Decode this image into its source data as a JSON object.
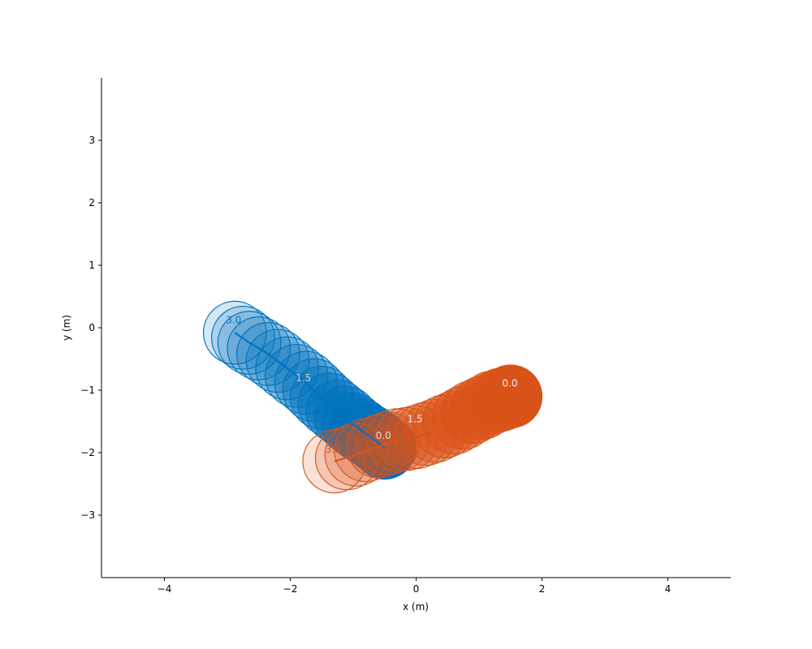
{
  "chart_data": {
    "type": "scatter",
    "title": "",
    "xlabel": "x (m)",
    "ylabel": "y (m)",
    "xlim": [
      -5,
      5
    ],
    "ylim": [
      -4,
      4
    ],
    "xticks": [
      -4,
      -2,
      0,
      2,
      4
    ],
    "yticks": [
      -3,
      -2,
      -1,
      0,
      1,
      2,
      3
    ],
    "grid": false,
    "agent_radius": 0.5,
    "series": [
      {
        "color": "#0072BD",
        "path": {
          "x": [
            -0.5,
            -0.75,
            -1.0,
            -1.25,
            -1.5,
            -1.75,
            -2.05,
            -2.35,
            -2.65,
            -2.88
          ],
          "y": [
            -1.92,
            -1.73,
            -1.55,
            -1.34,
            -1.12,
            -0.88,
            -0.65,
            -0.42,
            -0.24,
            -0.08
          ]
        },
        "circles": {
          "x": [
            -0.5,
            -0.62,
            -0.75,
            -0.88,
            -1.0,
            -1.12,
            -1.25,
            -1.38,
            -1.5,
            -1.62,
            -1.75,
            -1.9,
            -2.05,
            -2.2,
            -2.35,
            -2.5,
            -2.65,
            -2.75,
            -2.88
          ],
          "y": [
            -1.92,
            -1.82,
            -1.73,
            -1.64,
            -1.55,
            -1.44,
            -1.34,
            -1.23,
            -1.12,
            -1.0,
            -0.88,
            -0.77,
            -0.65,
            -0.53,
            -0.42,
            -0.33,
            -0.24,
            -0.16,
            -0.08
          ],
          "fill_opacity": [
            1.0,
            0.87,
            0.77,
            0.69,
            0.62,
            0.56,
            0.5,
            0.45,
            0.4,
            0.36,
            0.32,
            0.3,
            0.28,
            0.26,
            0.24,
            0.22,
            0.2,
            0.19,
            0.17
          ]
        },
        "time_labels": [
          {
            "x": -0.52,
            "y": -1.78,
            "text": "0.0",
            "color": "#dddddd"
          },
          {
            "x": -1.79,
            "y": -0.86,
            "text": "1.5",
            "color": "#cccccc"
          },
          {
            "x": -2.9,
            "y": 0.07,
            "text": "3.0",
            "color": "#0072BD"
          }
        ]
      },
      {
        "color": "#D95319",
        "path": {
          "x": [
            1.5,
            1.2,
            0.9,
            0.6,
            0.3,
            0.0,
            -0.3,
            -0.6,
            -0.95,
            -1.3
          ],
          "y": [
            -1.1,
            -1.2,
            -1.35,
            -1.52,
            -1.65,
            -1.75,
            -1.8,
            -1.9,
            -2.03,
            -2.14
          ]
        },
        "circles": {
          "x": [
            1.5,
            1.35,
            1.2,
            1.05,
            0.9,
            0.75,
            0.6,
            0.45,
            0.3,
            0.15,
            0.0,
            -0.15,
            -0.3,
            -0.45,
            -0.6,
            -0.8,
            -0.95,
            -1.1,
            -1.3
          ],
          "y": [
            -1.1,
            -1.15,
            -1.2,
            -1.28,
            -1.35,
            -1.44,
            -1.52,
            -1.58,
            -1.65,
            -1.7,
            -1.75,
            -1.78,
            -1.8,
            -1.85,
            -1.9,
            -1.96,
            -2.03,
            -2.09,
            -2.14
          ],
          "fill_opacity": [
            1.0,
            0.87,
            0.77,
            0.69,
            0.62,
            0.56,
            0.5,
            0.45,
            0.4,
            0.36,
            0.32,
            0.3,
            0.28,
            0.26,
            0.24,
            0.22,
            0.2,
            0.19,
            0.17
          ]
        },
        "time_labels": [
          {
            "x": 1.49,
            "y": -0.94,
            "text": "0.0",
            "color": "#eeeeee"
          },
          {
            "x": -0.02,
            "y": -1.51,
            "text": "1.5",
            "color": "#eeeeee"
          },
          {
            "x": -1.32,
            "y": -2.0,
            "text": "3.0",
            "color": "#D95319"
          }
        ]
      }
    ]
  }
}
